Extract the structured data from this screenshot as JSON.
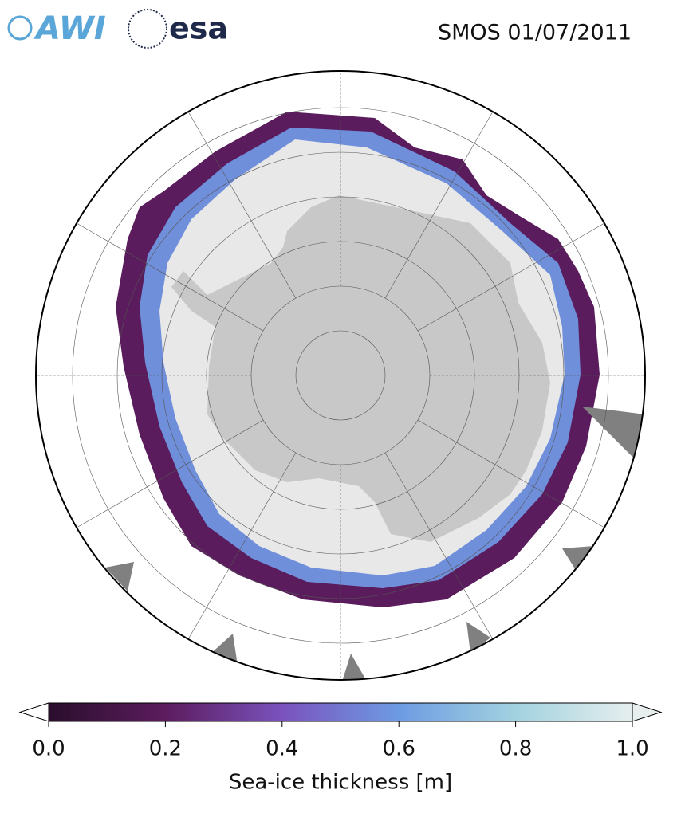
{
  "header": {
    "logos": [
      "AWI",
      "esa"
    ],
    "title": "SMOS 01/07/2011"
  },
  "colorbar": {
    "label": "Sea-ice thickness [m]",
    "lim": [
      0,
      1
    ],
    "ticks": [
      {
        "value": 0,
        "label": "0.0"
      },
      0.2,
      0.4,
      0.6,
      0.8,
      {
        "value": 1,
        "label": "1.0"
      }
    ],
    "colors": [
      "#2a0e2c",
      "#5c1c5e",
      "#7a52bd",
      "#6d9be3",
      "#a2d2df",
      "#e6eeee"
    ]
  }
}
